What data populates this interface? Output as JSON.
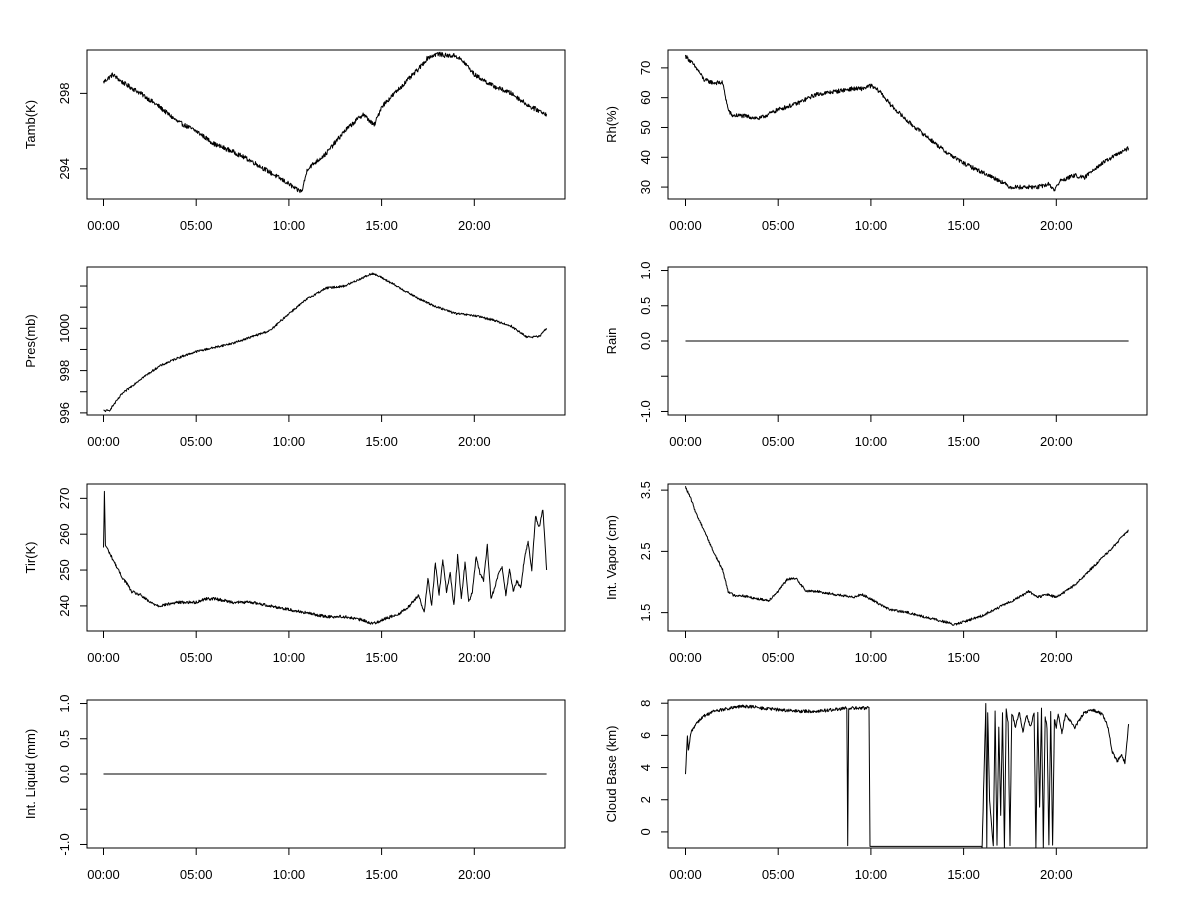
{
  "chart_data": [
    {
      "id": "tamb",
      "type": "line",
      "ylabel": "Tamb(K)",
      "x_unit": "hour",
      "xlim": [
        0,
        24
      ],
      "ylim": [
        292.4,
        300.3
      ],
      "xticks": [
        0,
        5,
        10,
        15,
        20
      ],
      "xtick_labels": [
        "00:00",
        "05:00",
        "10:00",
        "15:00",
        "20:00"
      ],
      "yticks": [
        294,
        298
      ],
      "ytick_labels": [
        "294",
        "298"
      ],
      "noise": 0.12,
      "x": [
        0.0,
        0.5,
        1.0,
        2.0,
        3.0,
        4.0,
        5.0,
        6.0,
        7.0,
        8.0,
        9.0,
        10.0,
        10.4,
        10.7,
        11.0,
        12.0,
        13.0,
        14.0,
        14.6,
        15.0,
        16.0,
        17.0,
        17.5,
        18.0,
        18.5,
        19.0,
        19.5,
        20.0,
        21.0,
        22.0,
        23.0,
        23.9
      ],
      "y": [
        298.6,
        299.0,
        298.6,
        298.0,
        297.3,
        296.5,
        296.0,
        295.3,
        294.9,
        294.4,
        293.8,
        293.2,
        292.9,
        292.8,
        294.0,
        294.8,
        296.0,
        296.9,
        296.3,
        297.3,
        298.3,
        299.3,
        299.9,
        300.1,
        300.0,
        300.0,
        299.6,
        299.0,
        298.4,
        298.0,
        297.3,
        296.9
      ]
    },
    {
      "id": "rh",
      "type": "line",
      "ylabel": "Rh(%)",
      "x_unit": "hour",
      "xlim": [
        0,
        24
      ],
      "ylim": [
        26,
        76
      ],
      "xticks": [
        0,
        5,
        10,
        15,
        20
      ],
      "xtick_labels": [
        "00:00",
        "05:00",
        "10:00",
        "15:00",
        "20:00"
      ],
      "yticks": [
        30,
        40,
        50,
        60,
        70
      ],
      "ytick_labels": [
        "30",
        "40",
        "50",
        "60",
        "70"
      ],
      "noise": 0.7,
      "x": [
        0.0,
        0.3,
        0.7,
        1.0,
        1.5,
        2.0,
        2.3,
        2.5,
        3.0,
        4.0,
        5.0,
        6.0,
        7.0,
        8.0,
        9.0,
        9.5,
        10.0,
        10.5,
        11.0,
        12.0,
        13.0,
        14.0,
        15.0,
        16.0,
        17.0,
        17.5,
        18.0,
        19.0,
        19.6,
        19.9,
        20.2,
        21.0,
        21.5,
        22.0,
        23.0,
        23.9
      ],
      "y": [
        74,
        72,
        69,
        66,
        65,
        65,
        56,
        54,
        54,
        53,
        56,
        58,
        61,
        62,
        63,
        63,
        64,
        62,
        58,
        52,
        47,
        42,
        38,
        35,
        32,
        30,
        30,
        30,
        31,
        29,
        32,
        34,
        33,
        36,
        40,
        43
      ]
    },
    {
      "id": "pres",
      "type": "line",
      "ylabel": "Pres(mb)",
      "x_unit": "hour",
      "xlim": [
        0,
        24
      ],
      "ylim": [
        995.9,
        1002.9
      ],
      "xticks": [
        0,
        5,
        10,
        15,
        20
      ],
      "xtick_labels": [
        "00:00",
        "05:00",
        "10:00",
        "15:00",
        "20:00"
      ],
      "yticks": [
        996,
        998,
        1000
      ],
      "ytick_labels": [
        "996",
        "998",
        "1000"
      ],
      "minor_yticks": [
        997,
        999,
        1001,
        1002
      ],
      "noise": 0.05,
      "x": [
        0.0,
        0.3,
        1.0,
        2.0,
        3.0,
        4.0,
        5.0,
        6.0,
        7.0,
        8.0,
        9.0,
        10.0,
        11.0,
        12.0,
        13.0,
        14.0,
        14.5,
        15.0,
        16.0,
        17.0,
        18.0,
        19.0,
        20.0,
        21.0,
        22.0,
        22.8,
        23.5,
        23.9
      ],
      "y": [
        996.1,
        996.1,
        996.9,
        997.6,
        998.2,
        998.6,
        998.9,
        999.1,
        999.3,
        999.6,
        999.9,
        1000.7,
        1001.4,
        1001.9,
        1002.0,
        1002.4,
        1002.6,
        1002.4,
        1001.9,
        1001.4,
        1001.0,
        1000.7,
        1000.6,
        1000.4,
        1000.1,
        999.6,
        999.6,
        1000.0
      ]
    },
    {
      "id": "rain",
      "type": "line",
      "ylabel": "Rain",
      "x_unit": "hour",
      "xlim": [
        0,
        24
      ],
      "ylim": [
        -1.05,
        1.05
      ],
      "xticks": [
        0,
        5,
        10,
        15,
        20
      ],
      "xtick_labels": [
        "00:00",
        "05:00",
        "10:00",
        "15:00",
        "20:00"
      ],
      "yticks": [
        -1.0,
        0.0,
        0.5,
        1.0
      ],
      "ytick_labels": [
        "-1.0",
        "0.0",
        "0.5",
        "1.0"
      ],
      "minor_yticks": [
        -0.5
      ],
      "noise": 0,
      "x": [
        0.0,
        23.9
      ],
      "y": [
        0.0,
        0.0
      ]
    },
    {
      "id": "tir",
      "type": "line",
      "ylabel": "Tir(K)",
      "x_unit": "hour",
      "xlim": [
        0,
        24
      ],
      "ylim": [
        233,
        274
      ],
      "xticks": [
        0,
        5,
        10,
        15,
        20
      ],
      "xtick_labels": [
        "00:00",
        "05:00",
        "10:00",
        "15:00",
        "20:00"
      ],
      "yticks": [
        240,
        250,
        260,
        270
      ],
      "ytick_labels": [
        "240",
        "250",
        "260",
        "270"
      ],
      "noise": 0.4,
      "x": [
        0.0,
        0.05,
        0.1,
        0.3,
        0.6,
        1.0,
        1.3,
        1.5,
        2.0,
        2.5,
        3.0,
        4.0,
        5.0,
        5.5,
        6.0,
        7.0,
        8.0,
        9.0,
        10.0,
        11.0,
        12.0,
        13.0,
        14.0,
        14.5,
        15.0,
        15.5,
        16.0,
        16.5,
        17.0,
        17.3,
        17.5,
        17.7,
        17.9,
        18.1,
        18.3,
        18.5,
        18.7,
        18.9,
        19.1,
        19.3,
        19.5,
        19.7,
        19.9,
        20.1,
        20.3,
        20.5,
        20.7,
        20.9,
        21.1,
        21.3,
        21.5,
        21.7,
        21.9,
        22.1,
        22.3,
        22.5,
        22.7,
        22.9,
        23.1,
        23.3,
        23.5,
        23.7,
        23.9
      ],
      "y": [
        256,
        272,
        257,
        255,
        252,
        248,
        246,
        244,
        243,
        241,
        240,
        241,
        241,
        242,
        242,
        241,
        241,
        240,
        239,
        238,
        237,
        237,
        236,
        235,
        236,
        237,
        238,
        240,
        243,
        238,
        248,
        240,
        252,
        243,
        253,
        244,
        249,
        240,
        254,
        242,
        252,
        241,
        244,
        254,
        249,
        247,
        257,
        242,
        245,
        249,
        251,
        243,
        250,
        244,
        247,
        245,
        253,
        258,
        250,
        265,
        262,
        267,
        250
      ]
    },
    {
      "id": "vapor",
      "type": "line",
      "ylabel": "Int. Vapor (cm)",
      "x_unit": "hour",
      "xlim": [
        0,
        24
      ],
      "ylim": [
        1.2,
        3.6
      ],
      "xticks": [
        0,
        5,
        10,
        15,
        20
      ],
      "xtick_labels": [
        "00:00",
        "05:00",
        "10:00",
        "15:00",
        "20:00"
      ],
      "yticks": [
        1.5,
        2.5,
        3.5
      ],
      "ytick_labels": [
        "1.5",
        "2.5",
        "3.5"
      ],
      "noise": 0.02,
      "x": [
        0.0,
        0.3,
        0.6,
        1.0,
        1.5,
        2.0,
        2.3,
        2.6,
        3.0,
        4.0,
        4.5,
        5.0,
        5.5,
        6.0,
        6.5,
        7.0,
        8.0,
        9.0,
        9.5,
        10.0,
        11.0,
        12.0,
        13.0,
        14.0,
        14.5,
        15.0,
        16.0,
        17.0,
        18.0,
        18.5,
        19.0,
        19.5,
        20.0,
        21.0,
        22.0,
        23.0,
        23.9
      ],
      "y": [
        3.55,
        3.35,
        3.1,
        2.85,
        2.5,
        2.2,
        1.85,
        1.78,
        1.78,
        1.72,
        1.7,
        1.85,
        2.05,
        2.05,
        1.85,
        1.85,
        1.8,
        1.75,
        1.8,
        1.72,
        1.55,
        1.5,
        1.42,
        1.35,
        1.3,
        1.35,
        1.45,
        1.6,
        1.75,
        1.85,
        1.75,
        1.8,
        1.75,
        1.95,
        2.25,
        2.55,
        2.85
      ]
    },
    {
      "id": "liquid",
      "type": "line",
      "ylabel": "Int. Liquid (mm)",
      "x_unit": "hour",
      "xlim": [
        0,
        24
      ],
      "ylim": [
        -1.05,
        1.05
      ],
      "xticks": [
        0,
        5,
        10,
        15,
        20
      ],
      "xtick_labels": [
        "00:00",
        "05:00",
        "10:00",
        "15:00",
        "20:00"
      ],
      "yticks": [
        -1.0,
        0.0,
        0.5,
        1.0
      ],
      "ytick_labels": [
        "-1.0",
        "0.0",
        "0.5",
        "1.0"
      ],
      "minor_yticks": [
        -0.5
      ],
      "noise": 0,
      "x": [
        0.0,
        23.9
      ],
      "y": [
        0.0,
        0.0
      ]
    },
    {
      "id": "cloudbase",
      "type": "line",
      "ylabel": "Cloud Base (km)",
      "x_unit": "hour",
      "xlim": [
        0,
        24
      ],
      "ylim": [
        -1.0,
        8.2
      ],
      "xticks": [
        0,
        5,
        10,
        15,
        20
      ],
      "xtick_labels": [
        "00:00",
        "05:00",
        "10:00",
        "15:00",
        "20:00"
      ],
      "yticks": [
        0,
        2,
        4,
        6,
        8
      ],
      "ytick_labels": [
        "0",
        "2",
        "4",
        "6",
        "8"
      ],
      "noise": 0.1,
      "x": [
        0.0,
        0.1,
        0.15,
        0.3,
        0.6,
        1.0,
        1.5,
        2.0,
        2.5,
        3.0,
        3.5,
        4.0,
        5.0,
        6.0,
        7.0,
        8.0,
        8.7,
        8.75,
        8.8,
        8.9,
        9.5,
        9.9,
        9.95,
        10.0,
        11.0,
        12.0,
        13.0,
        14.0,
        15.0,
        16.0,
        16.2,
        16.25,
        16.3,
        16.4,
        16.6,
        16.7,
        16.8,
        16.9,
        17.0,
        17.1,
        17.2,
        17.3,
        17.4,
        17.5,
        17.6,
        17.8,
        18.0,
        18.2,
        18.4,
        18.6,
        18.8,
        18.9,
        19.0,
        19.1,
        19.2,
        19.3,
        19.4,
        19.5,
        19.6,
        19.7,
        19.8,
        19.9,
        20.0,
        20.1,
        20.3,
        20.5,
        21.0,
        21.5,
        22.0,
        22.5,
        22.8,
        23.0,
        23.3,
        23.5,
        23.7,
        23.9
      ],
      "y": [
        3.5,
        6.0,
        5.0,
        6.2,
        6.8,
        7.2,
        7.5,
        7.6,
        7.7,
        7.8,
        7.8,
        7.7,
        7.6,
        7.5,
        7.5,
        7.6,
        7.7,
        -0.9,
        7.6,
        7.7,
        7.7,
        7.7,
        -0.9,
        -0.9,
        -0.9,
        -0.9,
        -0.9,
        -0.9,
        -0.9,
        -0.9,
        8.0,
        -0.9,
        7.5,
        2.0,
        -0.9,
        7.5,
        -0.9,
        6.5,
        1.0,
        7.4,
        -0.9,
        7.6,
        6.8,
        -0.9,
        7.4,
        6.5,
        7.5,
        6.2,
        7.3,
        6.5,
        7.4,
        -0.9,
        7.5,
        1.5,
        7.6,
        -0.9,
        7.2,
        6.5,
        -0.9,
        7.5,
        -0.9,
        7.0,
        6.5,
        7.4,
        6.2,
        7.3,
        6.5,
        7.4,
        7.6,
        7.3,
        6.5,
        5.0,
        4.4,
        4.8,
        4.3,
        6.7
      ]
    }
  ]
}
